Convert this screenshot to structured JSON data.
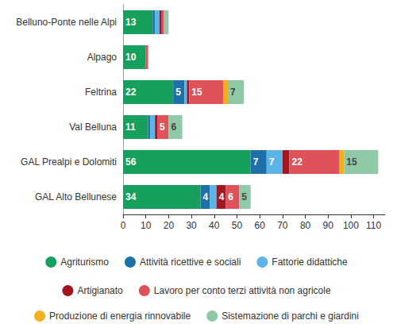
{
  "chart_data": {
    "type": "bar",
    "orientation": "horizontal",
    "stacked": true,
    "data_labels": true,
    "grid": false,
    "legend": "bottom",
    "categories": [
      "Belluno-Ponte nelle Alpi",
      "Alpago",
      "Feltrina",
      "Val Belluna",
      "GAL Prealpi e Dolomiti",
      "GAL Alto Bellunese"
    ],
    "xlim": [
      0,
      115
    ],
    "xticks": [
      0,
      10,
      20,
      30,
      40,
      50,
      60,
      70,
      80,
      90,
      100,
      110
    ],
    "series": [
      {
        "name": "Agriturismo",
        "color": "#17a05d",
        "values": [
          13,
          10,
          22,
          11,
          56,
          34
        ],
        "value_labels": [
          "13",
          "10",
          "22",
          "11",
          "56",
          "34"
        ]
      },
      {
        "name": "Attività ricettive e sociali",
        "color": "#1f6fa8",
        "values": [
          1,
          0,
          5,
          1,
          7,
          4
        ],
        "value_labels": [
          null,
          null,
          "5",
          null,
          "7",
          "4"
        ]
      },
      {
        "name": "Fattorie didattiche",
        "color": "#5bb4e5",
        "values": [
          2,
          0,
          1,
          2,
          7,
          3
        ],
        "value_labels": [
          null,
          null,
          null,
          null,
          "7",
          null
        ]
      },
      {
        "name": "Artigianato",
        "color": "#a31520",
        "values": [
          1,
          0,
          1,
          1,
          3,
          4
        ],
        "value_labels": [
          null,
          null,
          null,
          null,
          null,
          "4"
        ]
      },
      {
        "name": "Lavoro per conto terzi attività non agricole",
        "color": "#e0525a",
        "values": [
          1,
          1,
          15,
          5,
          22,
          6
        ],
        "value_labels": [
          null,
          null,
          "15",
          "5",
          "22",
          "6"
        ]
      },
      {
        "name": "Produzione di energia rinnovabile",
        "color": "#f0b020",
        "values": [
          0,
          0,
          2,
          0,
          2,
          0
        ],
        "value_labels": [
          null,
          null,
          null,
          null,
          null,
          null
        ]
      },
      {
        "name": "Sistemazione di parchi e giardini",
        "color": "#8fc9a5",
        "values": [
          2,
          0,
          7,
          6,
          15,
          5
        ],
        "value_labels": [
          null,
          null,
          "7",
          "6",
          "15",
          "5"
        ]
      }
    ]
  }
}
